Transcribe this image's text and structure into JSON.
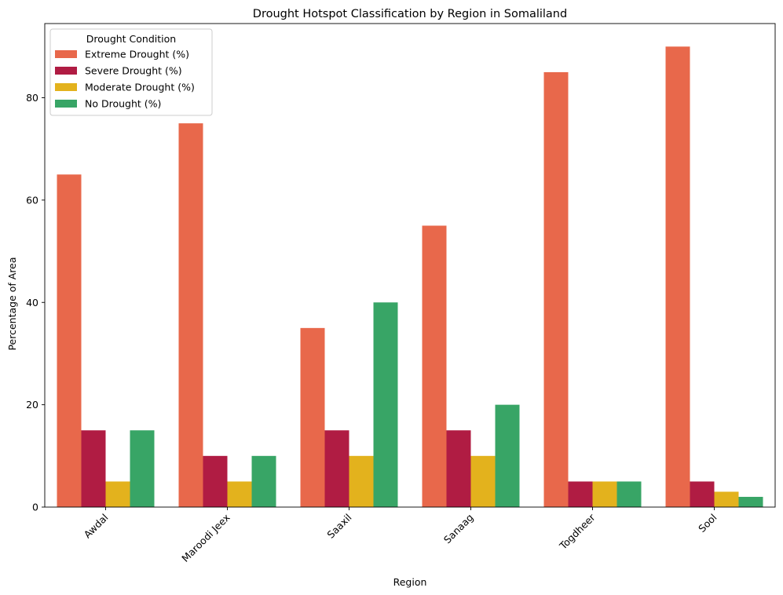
{
  "chart_data": {
    "type": "bar",
    "title": "Drought Hotspot Classification by Region in Somaliland",
    "xlabel": "Region",
    "ylabel": "Percentage of Area",
    "ylim": [
      0,
      94.5
    ],
    "yticks": [
      0,
      20,
      40,
      60,
      80
    ],
    "grid": false,
    "legend": {
      "title": "Drought Condition",
      "placement": "top-left"
    },
    "categories": [
      "Awdal",
      "Maroodi Jeex",
      "Saaxil",
      "Sanaag",
      "Togdheer",
      "Sool"
    ],
    "series": [
      {
        "name": "Extreme Drought (%)",
        "color": "#e8684b",
        "values": [
          65,
          75,
          35,
          55,
          85,
          90
        ]
      },
      {
        "name": "Severe Drought (%)",
        "color": "#b01c43",
        "values": [
          15,
          10,
          15,
          15,
          5,
          5
        ]
      },
      {
        "name": "Moderate Drought (%)",
        "color": "#e3b21d",
        "values": [
          5,
          5,
          10,
          10,
          5,
          3
        ]
      },
      {
        "name": "No Drought (%)",
        "color": "#38a566",
        "values": [
          15,
          10,
          40,
          20,
          5,
          2
        ]
      }
    ]
  }
}
